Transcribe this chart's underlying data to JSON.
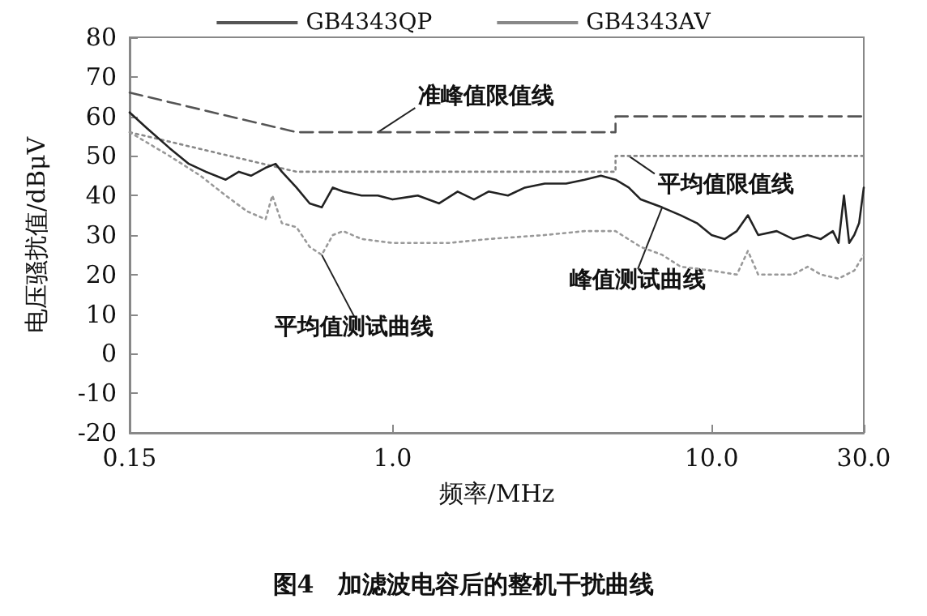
{
  "chart_data": {
    "type": "line",
    "xlabel": "频率/MHz",
    "ylabel": "电压骚扰值/dBμV",
    "log": "x",
    "xlim": [
      0.15,
      30
    ],
    "xticks": [
      0.15,
      {
        "value": 1,
        "label": "1.0"
      },
      {
        "value": 10,
        "label": "10.0"
      },
      {
        "value": 30,
        "label": "30.0"
      }
    ],
    "ylim": [
      -20,
      80
    ],
    "yticks": [
      -20,
      -10,
      0,
      10,
      20,
      30,
      40,
      50,
      60,
      70,
      80
    ],
    "grid": false,
    "legend": "top",
    "marker": "none",
    "series": [
      {
        "name": "GB4343QP",
        "color": "#555555",
        "line_style": "dashed",
        "x": [
          0.15,
          0.5,
          5,
          5,
          30
        ],
        "values": [
          66,
          56,
          56,
          60,
          60
        ]
      },
      {
        "name": "GB4343AV",
        "color": "#888888",
        "line_style": "dotted",
        "x": [
          0.15,
          0.5,
          5,
          5,
          30
        ],
        "values": [
          56,
          46,
          46,
          50,
          50
        ]
      },
      {
        "color": "#222222",
        "line_style": "solid",
        "x": [
          0.15,
          0.17,
          0.2,
          0.23,
          0.26,
          0.3,
          0.33,
          0.36,
          0.4,
          0.43,
          0.45,
          0.5,
          0.55,
          0.6,
          0.65,
          0.7,
          0.8,
          0.9,
          1.0,
          1.2,
          1.4,
          1.6,
          1.8,
          2.0,
          2.3,
          2.6,
          3.0,
          3.5,
          4.0,
          4.5,
          5.0,
          5.5,
          6.0,
          7.0,
          8.0,
          9.0,
          10,
          11,
          12,
          13,
          14,
          16,
          18,
          20,
          22,
          24,
          25,
          26,
          27,
          28,
          29,
          30
        ],
        "values": [
          61,
          57,
          52,
          48,
          46,
          44,
          46,
          45,
          47,
          48,
          46,
          42,
          38,
          37,
          42,
          41,
          40,
          40,
          39,
          40,
          38,
          41,
          39,
          41,
          40,
          42,
          43,
          43,
          44,
          45,
          44,
          42,
          39,
          37,
          35,
          33,
          30,
          29,
          31,
          35,
          30,
          31,
          29,
          30,
          29,
          31,
          28,
          40,
          28,
          30,
          33,
          42
        ]
      },
      {
        "color": "#999999",
        "line_style": "dotted",
        "x": [
          0.15,
          0.2,
          0.25,
          0.3,
          0.35,
          0.4,
          0.42,
          0.45,
          0.5,
          0.55,
          0.6,
          0.65,
          0.7,
          0.8,
          1.0,
          1.5,
          2.0,
          3.0,
          4.0,
          5.0,
          6.0,
          7.0,
          8.0,
          10,
          12,
          13,
          14,
          18,
          20,
          22,
          25,
          28,
          30
        ],
        "values": [
          56,
          50,
          45,
          40,
          36,
          34,
          40,
          33,
          32,
          27,
          25,
          30,
          31,
          29,
          28,
          28,
          29,
          30,
          31,
          31,
          27,
          25,
          22,
          21,
          20,
          26,
          20,
          20,
          22,
          20,
          19,
          21,
          25
        ]
      }
    ],
    "annotations": [
      {
        "text": "准峰值限值线",
        "x": 0.9,
        "y": 56
      },
      {
        "text": "平均值限值线",
        "x": 5.5,
        "y": 50
      },
      {
        "text": "平均值测试曲线",
        "x": 0.6,
        "y": 25
      },
      {
        "text": "峰值测试曲线",
        "x": 7,
        "y": 37
      },
      "图4　加滤波电容后的整机干扰曲线"
    ]
  }
}
